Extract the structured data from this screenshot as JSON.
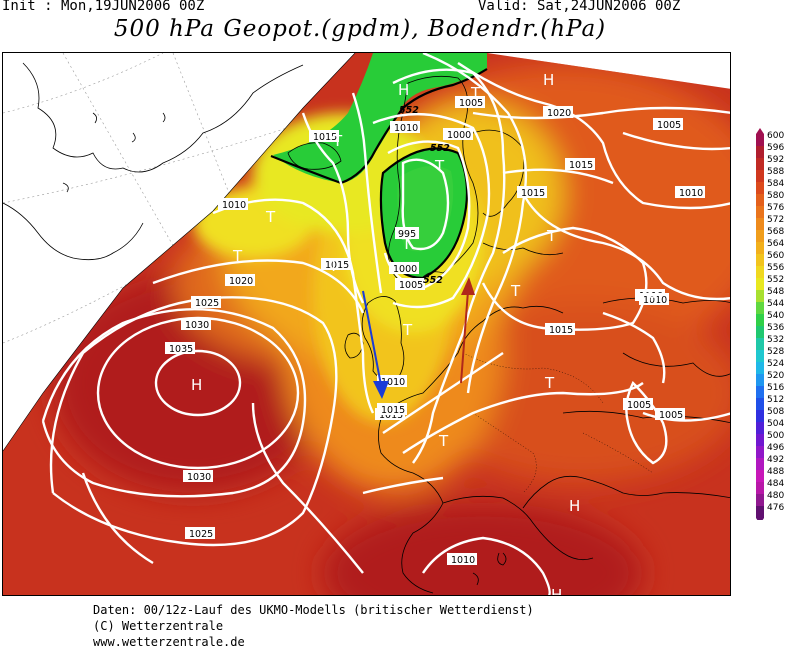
{
  "header": {
    "init": "Init : Mon,19JUN2006 00Z",
    "valid": "Valid: Sat,24JUN2006 00Z",
    "title": "500 hPa Geopot.(gpdm), Bodendr.(hPa)"
  },
  "colors": {
    "background": "#ffffff",
    "base_field": "#c8321e",
    "high_field": "#b01e1e",
    "orange_field": "#e86a1a",
    "amber_field": "#f2a81c",
    "yellow_field": "#f0e020",
    "lightgreen_field": "#60d840",
    "green_field": "#20cc30",
    "isobar": "#ffffff",
    "coast": "#000000",
    "arrow_blue": "#1a3cd8",
    "arrow_red": "#b0281a"
  },
  "isobars": [
    {
      "label": "1035"
    },
    {
      "label": "1030"
    },
    {
      "label": "1030"
    },
    {
      "label": "1025"
    },
    {
      "label": "1025"
    },
    {
      "label": "1020"
    },
    {
      "label": "1015"
    },
    {
      "label": "1015"
    },
    {
      "label": "1015"
    },
    {
      "label": "1015"
    },
    {
      "label": "1010"
    },
    {
      "label": "1010"
    },
    {
      "label": "1010"
    },
    {
      "label": "1010"
    },
    {
      "label": "1010"
    },
    {
      "label": "1005"
    },
    {
      "label": "1005"
    },
    {
      "label": "1005"
    },
    {
      "label": "1005"
    },
    {
      "label": "1005"
    },
    {
      "label": "1000"
    },
    {
      "label": "1000"
    },
    {
      "label": "995"
    },
    {
      "label": "1015"
    },
    {
      "label": "1015"
    },
    {
      "label": "1020"
    },
    {
      "label": "1010"
    },
    {
      "label": "1015"
    },
    {
      "label": "1010"
    }
  ],
  "contour_labels": [
    {
      "label": "552"
    },
    {
      "label": "552"
    },
    {
      "label": "552"
    }
  ],
  "pressure_centers": [
    {
      "label": "H"
    },
    {
      "label": "H"
    },
    {
      "label": "H"
    },
    {
      "label": "H"
    },
    {
      "label": "H"
    },
    {
      "label": "T"
    },
    {
      "label": "T"
    },
    {
      "label": "T"
    },
    {
      "label": "T"
    },
    {
      "label": "T"
    },
    {
      "label": "T"
    },
    {
      "label": "T"
    },
    {
      "label": "T"
    },
    {
      "label": "T"
    },
    {
      "label": "T"
    },
    {
      "label": "T"
    },
    {
      "label": "T"
    },
    {
      "label": "H"
    }
  ],
  "colorbar": {
    "levels": [
      "600",
      "596",
      "592",
      "588",
      "584",
      "580",
      "576",
      "572",
      "568",
      "564",
      "560",
      "556",
      "552",
      "548",
      "544",
      "540",
      "536",
      "532",
      "528",
      "524",
      "520",
      "516",
      "512",
      "508",
      "504",
      "500",
      "496",
      "492",
      "488",
      "484",
      "480",
      "476"
    ],
    "colors": [
      "#a01050",
      "#b01e2e",
      "#c02a24",
      "#d0381e",
      "#dc4a1c",
      "#e4601c",
      "#ea741c",
      "#ee8a1c",
      "#f09e1c",
      "#f2b01c",
      "#f2c41e",
      "#f0d820",
      "#e8e820",
      "#a8e030",
      "#60d840",
      "#30d048",
      "#20c870",
      "#20c8a8",
      "#20c8d0",
      "#20b8e8",
      "#2098f0",
      "#2070f0",
      "#2050e8",
      "#3030e0",
      "#5020d8",
      "#7018d0",
      "#9018c8",
      "#b018c0",
      "#c818b8",
      "#b818a8",
      "#901890",
      "#601070"
    ]
  },
  "footer": {
    "line1": "Daten: 00/12z-Lauf des UKMO-Modells (britischer Wetterdienst)",
    "line2": "(C) Wetterzentrale",
    "line3": "www.wetterzentrale.de"
  }
}
